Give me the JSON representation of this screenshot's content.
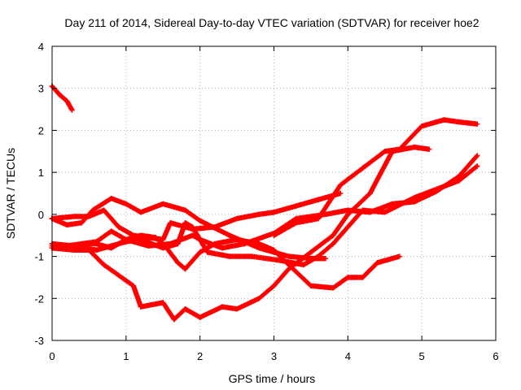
{
  "chart_data": {
    "type": "scatter",
    "title": "Day 211 of 2014, Sidereal Day-to-day VTEC variation (SDTVAR) for receiver hoe2",
    "xlabel": "GPS time / hours",
    "ylabel": "SDTVAR / TECUs",
    "xlim": [
      0,
      6
    ],
    "ylim": [
      -3,
      4
    ],
    "xticks": [
      "0",
      "1",
      "2",
      "3",
      "4",
      "5",
      "6"
    ],
    "yticks": [
      "-3",
      "-2",
      "-1",
      "0",
      "1",
      "2",
      "3",
      "4"
    ],
    "grid": true,
    "marker": "plus",
    "colors": {
      "series": "#ff0000",
      "grid": "#b0b0b0",
      "axis": "#000000"
    },
    "series": [
      {
        "name": "track-1",
        "x": [
          0.0,
          0.1,
          0.2,
          0.27
        ],
        "y": [
          3.05,
          2.85,
          2.7,
          2.48
        ]
      },
      {
        "name": "track-2",
        "x": [
          0.0,
          0.2,
          0.4,
          0.55,
          0.8,
          1.0,
          1.2,
          1.5,
          1.8,
          2.0,
          2.4,
          2.8,
          3.2,
          3.5,
          3.7
        ],
        "y": [
          -0.1,
          -0.25,
          -0.2,
          0.1,
          0.38,
          0.25,
          0.05,
          0.25,
          0.1,
          -0.15,
          -0.5,
          -0.8,
          -1.0,
          -1.05,
          -1.05
        ]
      },
      {
        "name": "track-3",
        "x": [
          0.0,
          0.3,
          0.5,
          0.7,
          0.9,
          1.1,
          1.3,
          1.5,
          1.6,
          1.9,
          2.2,
          2.5,
          2.8,
          3.0,
          3.3,
          3.6,
          3.9
        ],
        "y": [
          -0.1,
          -0.05,
          -0.05,
          0.1,
          -0.3,
          -0.5,
          -0.55,
          -0.6,
          -0.2,
          -0.35,
          -0.3,
          -0.1,
          0.0,
          0.05,
          0.2,
          0.35,
          0.5
        ]
      },
      {
        "name": "track-4",
        "x": [
          0.0,
          0.3,
          0.6,
          0.8,
          1.0,
          1.2,
          1.5,
          1.7,
          1.8,
          1.9,
          2.1,
          2.4,
          2.7,
          3.1,
          3.4,
          3.6,
          3.8,
          4.0,
          4.2,
          4.5,
          4.9,
          5.2,
          5.5,
          5.75
        ],
        "y": [
          -0.7,
          -0.75,
          -0.85,
          -0.75,
          -0.65,
          -0.6,
          -0.8,
          -0.7,
          -0.2,
          -0.3,
          -0.9,
          -1.0,
          -1.0,
          -1.1,
          -1.2,
          -1.0,
          -0.7,
          -0.3,
          0.1,
          0.05,
          0.4,
          0.6,
          0.8,
          1.15
        ]
      },
      {
        "name": "track-5",
        "x": [
          0.0,
          0.2,
          0.6,
          0.8,
          1.0,
          1.3,
          1.6,
          1.9,
          2.0,
          2.3,
          2.6,
          3.0,
          3.3,
          3.7,
          4.0,
          4.3,
          4.6,
          4.9,
          5.2,
          5.5,
          5.75
        ],
        "y": [
          -0.8,
          -0.75,
          -0.65,
          -0.4,
          -0.6,
          -0.75,
          -0.7,
          -0.5,
          -0.6,
          -0.8,
          -0.7,
          -0.45,
          -0.1,
          0.0,
          0.1,
          0.05,
          0.25,
          0.3,
          0.55,
          0.9,
          1.4
        ]
      },
      {
        "name": "track-6",
        "x": [
          0.0,
          0.2,
          0.4,
          0.6,
          0.8,
          1.0,
          1.2,
          1.4,
          1.55,
          1.7,
          1.8,
          2.0,
          2.2,
          2.5,
          2.8,
          3.0,
          3.2,
          3.5,
          3.8,
          4.0,
          4.2,
          4.4,
          4.7
        ],
        "y": [
          -0.75,
          -0.8,
          -0.7,
          -0.7,
          -0.8,
          -0.6,
          -0.5,
          -0.55,
          -0.8,
          -1.15,
          -1.3,
          -0.9,
          -0.7,
          -0.6,
          -0.7,
          -0.85,
          -1.2,
          -1.7,
          -1.75,
          -1.5,
          -1.5,
          -1.15,
          -1.0
        ]
      },
      {
        "name": "track-7",
        "x": [
          0.0,
          0.3,
          0.5,
          0.7,
          0.9,
          1.1,
          1.2,
          1.5,
          1.65,
          1.8,
          2.0,
          2.3,
          2.5,
          2.8,
          3.0,
          3.2,
          3.5,
          3.8,
          4.0,
          4.3,
          4.6,
          4.9,
          5.1
        ],
        "y": [
          -0.8,
          -0.85,
          -0.85,
          -1.2,
          -1.45,
          -1.7,
          -2.2,
          -2.1,
          -2.5,
          -2.25,
          -2.45,
          -2.2,
          -2.25,
          -2.0,
          -1.7,
          -1.3,
          -0.9,
          -0.5,
          0.0,
          0.5,
          1.5,
          1.6,
          1.55
        ]
      },
      {
        "name": "track-8",
        "x": [
          3.0,
          3.3,
          3.6,
          3.9,
          4.2,
          4.5,
          4.7,
          5.0,
          5.3,
          5.5,
          5.75
        ],
        "y": [
          -0.5,
          -0.2,
          -0.1,
          0.7,
          1.1,
          1.5,
          1.55,
          2.1,
          2.25,
          2.2,
          2.15
        ]
      }
    ]
  }
}
